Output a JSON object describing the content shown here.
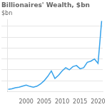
{
  "chart_data": {
    "type": "line",
    "title": "Billionaires' Wealth, $bn",
    "subtitle": "$bn",
    "x": [
      1995,
      1996,
      1997,
      1998,
      1999,
      2000,
      2001,
      2002,
      2003,
      2004,
      2005,
      2006,
      2007,
      2008,
      2009,
      2010,
      2011,
      2012,
      2013,
      2014,
      2015,
      2016,
      2017,
      2018,
      2019,
      2020,
      2021
    ],
    "values": [
      200,
      250,
      350,
      400,
      500,
      600,
      480,
      400,
      500,
      700,
      1000,
      1400,
      1900,
      1200,
      1500,
      1900,
      2200,
      2000,
      2300,
      2400,
      2100,
      2200,
      2700,
      2800,
      3000,
      2600,
      6500
    ],
    "xlim": [
      1994.7,
      2021.3
    ],
    "xticks": [
      2000,
      2005,
      2010,
      2015,
      2020
    ],
    "ylim": [
      0,
      6630
    ],
    "yticks": [
      1000,
      2000,
      3000,
      4000,
      5000,
      6000
    ],
    "grid": "y",
    "tick_labels": "x"
  }
}
